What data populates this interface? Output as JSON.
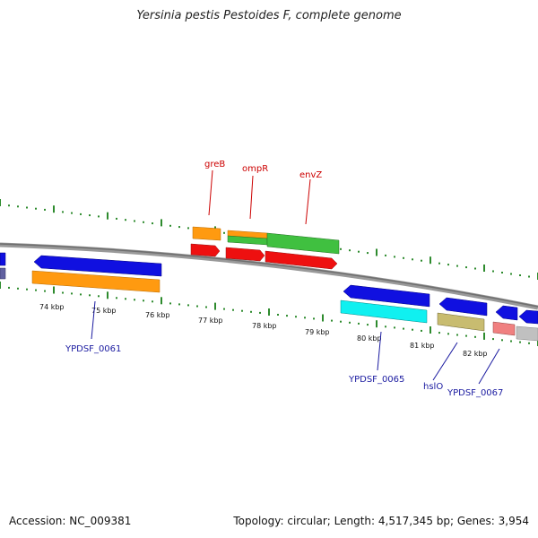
{
  "title": "Yersinia pestis Pestoides F, complete genome",
  "footer": {
    "accession": "Accession: NC_009381",
    "summary": "Topology: circular; Length: 4,517,345 bp; Genes: 3,954"
  },
  "ruler": {
    "unit": "kbp",
    "labels": [
      "74 kbp",
      "75 kbp",
      "76 kbp",
      "77 kbp",
      "78 kbp",
      "79 kbp",
      "80 kbp",
      "81 kbp",
      "82 kbp"
    ]
  },
  "gene_labels": [
    {
      "id": "greB",
      "text": "greB",
      "color": "#cc0000"
    },
    {
      "id": "ompR",
      "text": "ompR",
      "color": "#cc0000"
    },
    {
      "id": "envZ",
      "text": "envZ",
      "color": "#cc0000"
    },
    {
      "id": "YPDSF_0061",
      "text": "YPDSF_0061",
      "color": "#1a1aa0"
    },
    {
      "id": "YPDSF_0065",
      "text": "YPDSF_0065",
      "color": "#1a1aa0"
    },
    {
      "id": "hslO",
      "text": "hslO",
      "color": "#1a1aa0"
    },
    {
      "id": "YPDSF_0067",
      "text": "YPDSF_0067",
      "color": "#1a1aa0"
    }
  ],
  "colors": {
    "backbone": "#808080",
    "ticks": "#2e8b2e",
    "blue": "#1010e0",
    "orange": "#ff9a10",
    "green": "#40c040",
    "red": "#ee1010",
    "cyan": "#10f0f0",
    "khaki": "#c8bc70",
    "pink": "#f08080",
    "silver": "#c0c0c0",
    "slate": "#6060a0"
  }
}
